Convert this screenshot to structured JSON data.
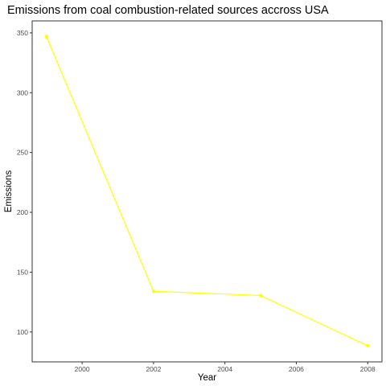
{
  "chart_data": {
    "type": "line",
    "title": "Emissions from coal combustion-related sources accross USA",
    "xlabel": "Year",
    "ylabel": "Emissions",
    "x": [
      1999,
      2002,
      2005,
      2008
    ],
    "series": [
      {
        "values": [
          347,
          134,
          130.5,
          88.5
        ],
        "color": "#ffff00"
      }
    ],
    "xlim": [
      1998.6,
      2008.4
    ],
    "ylim": [
      75,
      360
    ],
    "x_ticks": [
      2000,
      2002,
      2004,
      2006,
      2008
    ],
    "y_ticks": [
      100,
      150,
      200,
      250,
      300,
      350
    ],
    "x_tick_labels": [
      "2000",
      "2002",
      "2004",
      "2006",
      "2008"
    ],
    "y_tick_labels": [
      "100",
      "150",
      "200",
      "250",
      "300",
      "350"
    ],
    "grid": false,
    "legend": "none",
    "panel_border_color": "#333333",
    "tick_color": "#333333"
  }
}
